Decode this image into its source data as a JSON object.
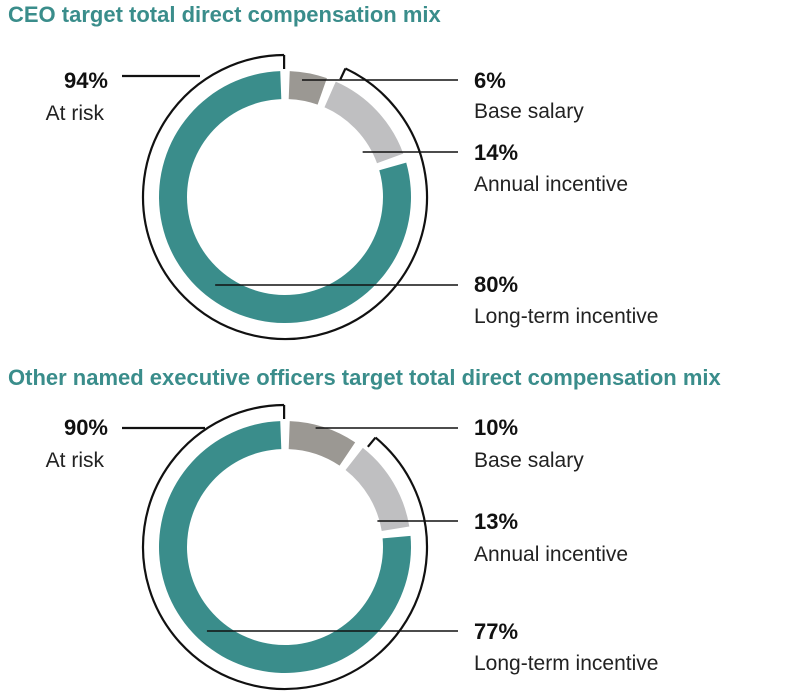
{
  "chart_data": [
    {
      "type": "pie",
      "title": "CEO target total direct compensation mix",
      "at_risk": {
        "value": "94%",
        "label": "At risk"
      },
      "slices": [
        {
          "value_text": "6%",
          "label": "Base salary",
          "value": 6,
          "color": "#9b9893"
        },
        {
          "value_text": "14%",
          "label": "Annual incentive",
          "value": 14,
          "color": "#bfbfc1"
        },
        {
          "value_text": "80%",
          "label": "Long-term incentive",
          "value": 80,
          "color": "#3a8d8b"
        }
      ]
    },
    {
      "type": "pie",
      "title": "Other named executive officers target total direct compensation mix",
      "at_risk": {
        "value": "90%",
        "label": "At risk"
      },
      "slices": [
        {
          "value_text": "10%",
          "label": "Base salary",
          "value": 10,
          "color": "#9b9893"
        },
        {
          "value_text": "13%",
          "label": "Annual incentive",
          "value": 13,
          "color": "#bfbfc1"
        },
        {
          "value_text": "77%",
          "label": "Long-term incentive",
          "value": 77,
          "color": "#3a8d8b"
        }
      ]
    }
  ]
}
